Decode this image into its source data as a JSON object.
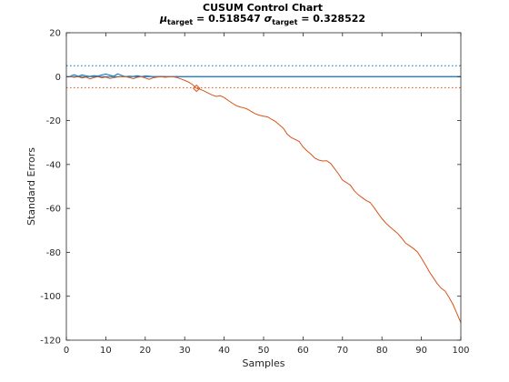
{
  "chart_data": {
    "type": "line",
    "title": "CUSUM Control Chart",
    "subtitle": {
      "mu_symbol": "μ",
      "mu_sub": "target",
      "mu_value": " = 0.518547 ",
      "sigma_symbol": "σ",
      "sigma_sub": "target",
      "sigma_value": " = 0.328522"
    },
    "xlabel": "Samples",
    "ylabel": "Standard Errors",
    "xlim": [
      0,
      100
    ],
    "ylim": [
      -120,
      20
    ],
    "xticks": [
      "0",
      "10",
      "20",
      "30",
      "40",
      "50",
      "60",
      "70",
      "80",
      "90",
      "100"
    ],
    "yticks": [
      "-120",
      "-100",
      "-80",
      "-60",
      "-40",
      "-20",
      "0",
      "20"
    ],
    "grid": false,
    "colors": {
      "upper_series": "#0072bd",
      "lower_series": "#d95319",
      "upper_limit": "#0072bd",
      "lower_limit": "#d95319",
      "center_line": "#0072bd",
      "out_of_control_marker": "#d95319"
    },
    "limits": {
      "upper": 5,
      "lower": -5,
      "center": 0
    },
    "out_of_control": [
      {
        "x": 33,
        "y": -5.3
      }
    ],
    "series": [
      {
        "x": [
          1,
          2,
          3,
          4,
          5,
          6,
          7,
          8,
          9,
          10,
          11,
          12,
          13,
          14,
          15,
          16,
          17,
          18,
          19,
          20,
          21,
          22,
          23,
          24,
          25,
          26,
          27,
          28,
          29,
          30,
          31,
          32,
          33,
          34,
          35,
          36,
          37,
          38,
          39,
          40,
          41,
          42,
          43,
          44,
          45,
          46,
          47,
          48,
          49,
          50,
          51,
          52,
          53,
          54,
          55,
          56,
          57,
          58,
          59,
          60,
          61,
          62,
          63,
          64,
          65,
          66,
          67,
          68,
          69,
          70,
          71,
          72,
          73,
          74,
          75,
          76,
          77,
          78,
          79,
          80,
          81,
          82,
          83,
          84,
          85,
          86,
          87,
          88,
          89,
          90,
          91,
          92,
          93,
          94,
          95,
          96,
          97,
          98,
          99,
          100
        ],
        "values": [
          0.3,
          0.9,
          0.2,
          0.8,
          0.4,
          0.1,
          0.5,
          0.3,
          0.8,
          1.2,
          0.7,
          0.2,
          1.3,
          0.6,
          0,
          0.2,
          0.1,
          0.4,
          0,
          0.3,
          0.2,
          0,
          0,
          0.1,
          0,
          0,
          0,
          0,
          0,
          0,
          0,
          0,
          0,
          0,
          0,
          0,
          0,
          0,
          0,
          0,
          0,
          0,
          0,
          0,
          0,
          0,
          0,
          0,
          0,
          0,
          0,
          0,
          0,
          0,
          0,
          0,
          0,
          0,
          0,
          0,
          0,
          0,
          0,
          0,
          0,
          0,
          0,
          0,
          0,
          0,
          0,
          0,
          0,
          0,
          0,
          0,
          0,
          0,
          0,
          0,
          0,
          0,
          0,
          0,
          0,
          0,
          0,
          0,
          0,
          0,
          0,
          0,
          0,
          0,
          0,
          0,
          0,
          0,
          0,
          0
        ]
      },
      {
        "x": [
          1,
          2,
          3,
          4,
          5,
          6,
          7,
          8,
          9,
          10,
          11,
          12,
          13,
          14,
          15,
          16,
          17,
          18,
          19,
          20,
          21,
          22,
          23,
          24,
          25,
          26,
          27,
          28,
          29,
          30,
          31,
          32,
          33,
          34,
          35,
          36,
          37,
          38,
          39,
          40,
          41,
          42,
          43,
          44,
          45,
          46,
          47,
          48,
          49,
          50,
          51,
          52,
          53,
          54,
          55,
          56,
          57,
          58,
          59,
          60,
          61,
          62,
          63,
          64,
          65,
          66,
          67,
          68,
          69,
          70,
          71,
          72,
          73,
          74,
          75,
          76,
          77,
          78,
          79,
          80,
          81,
          82,
          83,
          84,
          85,
          86,
          87,
          88,
          89,
          90,
          91,
          92,
          93,
          94,
          95,
          96,
          97,
          98,
          99,
          100
        ],
        "values": [
          0,
          -0.3,
          0,
          -0.6,
          -0.2,
          -1.0,
          -0.4,
          0,
          -0.5,
          -0.2,
          -0.8,
          -0.5,
          -0.1,
          0,
          0,
          -0.4,
          -0.9,
          -0.3,
          0,
          -0.6,
          -1.2,
          -0.5,
          -0.2,
          0,
          -0.3,
          -0.1,
          0,
          -0.4,
          -1.0,
          -1.7,
          -2.5,
          -3.6,
          -5.3,
          -5.8,
          -6.6,
          -7.5,
          -8.4,
          -9.0,
          -8.7,
          -9.5,
          -10.8,
          -12.0,
          -13.1,
          -13.8,
          -14.2,
          -14.9,
          -16.0,
          -17.0,
          -17.6,
          -18.0,
          -18.3,
          -19.4,
          -20.4,
          -22.0,
          -23.5,
          -26.2,
          -27.7,
          -28.6,
          -29.5,
          -32.0,
          -33.8,
          -35.3,
          -37.1,
          -38.0,
          -38.4,
          -38.3,
          -39.5,
          -41.9,
          -44.3,
          -47.1,
          -48.2,
          -49.4,
          -52.0,
          -53.8,
          -55.1,
          -56.4,
          -57.3,
          -59.6,
          -62.2,
          -64.6,
          -66.7,
          -68.4,
          -69.9,
          -71.4,
          -73.5,
          -75.8,
          -77.0,
          -78.3,
          -79.8,
          -82.6,
          -85.6,
          -88.8,
          -91.5,
          -94.2,
          -96.3,
          -97.6,
          -100.5,
          -103.7,
          -107.8,
          -112.0
        ]
      }
    ]
  }
}
